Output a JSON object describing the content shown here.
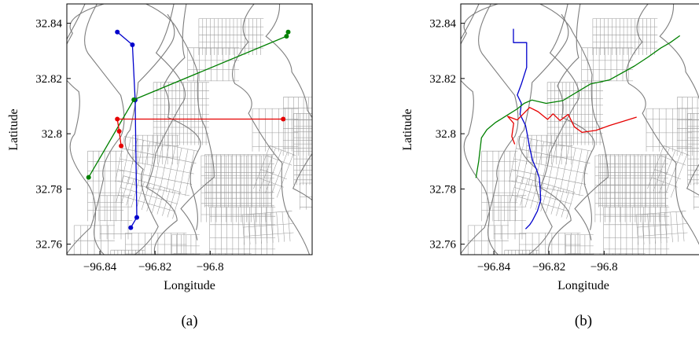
{
  "chart_data": [
    {
      "type": "line",
      "panel_label": "(a)",
      "xlabel": "Longitude",
      "ylabel": "Latitude",
      "xlim": [
        -96.852,
        -96.763
      ],
      "ylim": [
        32.7562,
        32.847
      ],
      "xticks": [
        -96.84,
        -96.82,
        -96.8
      ],
      "xtick_labels": [
        "−96.84",
        "−96.82",
        "−96.8"
      ],
      "yticks": [
        32.76,
        32.78,
        32.8,
        32.82,
        32.84
      ],
      "ytick_labels": [
        "32.76",
        "32.78",
        "32.8",
        "32.82",
        "32.84"
      ],
      "background": "street map",
      "series": [
        {
          "color": "#0000cc",
          "markers": true,
          "x": [
            -96.8337,
            -96.8282,
            -96.8272,
            -96.8266,
            -96.8288
          ],
          "y": [
            32.8368,
            32.8322,
            32.8122,
            32.7697,
            32.766
          ]
        },
        {
          "color": "#008000",
          "markers": true,
          "x": [
            -96.8441,
            -96.8277,
            -96.7723,
            -96.7717
          ],
          "y": [
            32.7842,
            32.8123,
            32.8353,
            32.8368
          ]
        },
        {
          "color": "#e60000",
          "markers": true,
          "x": [
            -96.8323,
            -96.833,
            -96.8337,
            -96.7735
          ],
          "y": [
            32.7956,
            32.8009,
            32.8053,
            32.8053
          ]
        }
      ]
    },
    {
      "type": "line",
      "panel_label": "(b)",
      "xlabel": "Longitude",
      "ylabel": "Latitude",
      "xlim": [
        -96.852,
        -96.763
      ],
      "ylim": [
        32.7562,
        32.847
      ],
      "xticks": [
        -96.84,
        -96.82,
        -96.8
      ],
      "xtick_labels": [
        "−96.84",
        "−96.82",
        "−96.8"
      ],
      "yticks": [
        32.76,
        32.78,
        32.8,
        32.82,
        32.84
      ],
      "ytick_labels": [
        "32.76",
        "32.78",
        "32.8",
        "32.82",
        "32.84"
      ],
      "background": "street map",
      "series": [
        {
          "color": "#0000cc",
          "markers": false,
          "x": [
            -96.8329,
            -96.8329,
            -96.8281,
            -96.8281,
            -96.83,
            -96.8315,
            -96.83,
            -96.8305,
            -96.8285,
            -96.8278,
            -96.827,
            -96.826,
            -96.8245,
            -96.8235,
            -96.8232,
            -96.823,
            -96.8242,
            -96.825,
            -96.826,
            -96.827,
            -96.8285
          ],
          "y": [
            32.838,
            32.833,
            32.833,
            32.824,
            32.818,
            32.814,
            32.811,
            32.807,
            32.803,
            32.7995,
            32.795,
            32.7905,
            32.787,
            32.784,
            32.78,
            32.776,
            32.772,
            32.7705,
            32.7685,
            32.767,
            32.7655
          ]
        },
        {
          "color": "#008000",
          "markers": false,
          "x": [
            -96.8465,
            -96.8455,
            -96.8445,
            -96.8425,
            -96.8395,
            -96.8355,
            -96.8315,
            -96.829,
            -96.8262,
            -96.821,
            -96.815,
            -96.805,
            -96.798,
            -96.789,
            -96.784,
            -96.7795,
            -96.776,
            -96.7725
          ],
          "y": [
            32.784,
            32.79,
            32.7985,
            32.8015,
            32.804,
            32.8065,
            32.809,
            32.811,
            32.8122,
            32.811,
            32.812,
            32.818,
            32.8195,
            32.8245,
            32.8278,
            32.831,
            32.833,
            32.8355
          ]
        },
        {
          "color": "#e60000",
          "markers": false,
          "x": [
            -96.8324,
            -96.8335,
            -96.8328,
            -96.835,
            -96.8315,
            -96.827,
            -96.824,
            -96.8205,
            -96.8185,
            -96.816,
            -96.813,
            -96.8108,
            -96.808,
            -96.803,
            -96.798,
            -96.793,
            -96.7882
          ],
          "y": [
            32.7962,
            32.799,
            32.8038,
            32.8063,
            32.805,
            32.8095,
            32.808,
            32.8052,
            32.8072,
            32.8048,
            32.807,
            32.8025,
            32.8005,
            32.8012,
            32.803,
            32.8045,
            32.806
          ]
        }
      ]
    }
  ]
}
